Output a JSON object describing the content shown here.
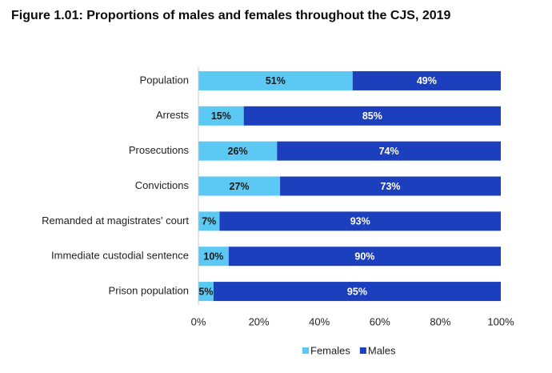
{
  "chart_data": {
    "type": "bar",
    "orientation": "horizontal",
    "stacked": true,
    "title": "Figure 1.01: Proportions of males and females throughout the CJS, 2019",
    "categories": [
      "Population",
      "Arrests",
      "Prosecutions",
      "Convictions",
      "Remanded at magistrates' court",
      "Immediate custodial sentence",
      "Prison population"
    ],
    "series": [
      {
        "name": "Females",
        "color": "#5bc9f4",
        "label_color": "#1a1a1a",
        "values": [
          51,
          15,
          26,
          27,
          7,
          10,
          5
        ],
        "value_labels": [
          "51%",
          "15%",
          "26%",
          "27%",
          "7%",
          "10%",
          "5%"
        ]
      },
      {
        "name": "Males",
        "color": "#1c3fbe",
        "label_color": "#ffffff",
        "values": [
          49,
          85,
          74,
          73,
          93,
          90,
          95
        ],
        "value_labels": [
          "49%",
          "85%",
          "74%",
          "73%",
          "93%",
          "90%",
          "95%"
        ]
      }
    ],
    "xlim": [
      0,
      100
    ],
    "xticks": [
      {
        "value": 0,
        "label": "0%"
      },
      {
        "value": 20,
        "label": "20%"
      },
      {
        "value": 40,
        "label": "40%"
      },
      {
        "value": 60,
        "label": "60%"
      },
      {
        "value": 80,
        "label": "80%"
      },
      {
        "value": 100,
        "label": "100%"
      }
    ],
    "legend": "bottom"
  }
}
